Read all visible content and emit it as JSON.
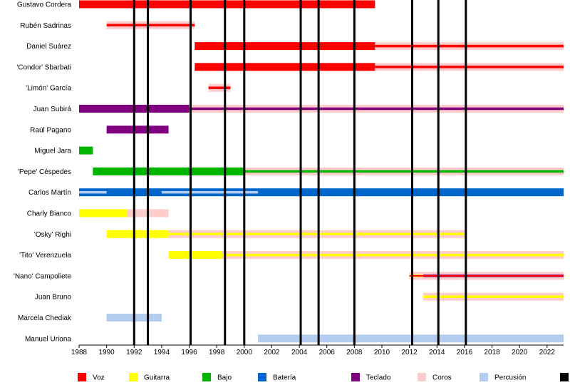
{
  "chart_data": {
    "type": "timeline",
    "xlim": [
      1988,
      2023.2
    ],
    "x_ticks": [
      "1988",
      "1990",
      "1992",
      "1994",
      "1996",
      "1998",
      "2000",
      "2002",
      "2004",
      "2006",
      "2008",
      "2010",
      "2012",
      "2014",
      "2016",
      "2018",
      "2020",
      "2022"
    ],
    "events": [
      1992,
      1993,
      1996.1,
      1998.6,
      2000,
      2004.1,
      2005.4,
      2008,
      2012.2,
      2014.1,
      2016.1
    ],
    "colors": {
      "voz": "#ff0000",
      "guitarra": "#ffff00",
      "bajo": "#00b400",
      "bateria": "#0066cc",
      "teclado": "#800080",
      "coros": "#ffcccc",
      "percusion": "#b3ccf0",
      "album": "#000000"
    },
    "legend": [
      {
        "key": "voz",
        "label": "Voz"
      },
      {
        "key": "guitarra",
        "label": "Guitarra"
      },
      {
        "key": "bajo",
        "label": "Bajo"
      },
      {
        "key": "bateria",
        "label": "Batería"
      },
      {
        "key": "teclado",
        "label": "Teclado"
      },
      {
        "key": "coros",
        "label": "Coros"
      },
      {
        "key": "percusion",
        "label": "Percusión"
      },
      {
        "key": "album",
        "label": ""
      }
    ],
    "members": [
      {
        "name": "Gustavo Cordera",
        "bars": [
          {
            "start": 1988,
            "end": 2009.5,
            "role": "voz",
            "style": "full"
          }
        ]
      },
      {
        "name": "Rubén Sadrinas",
        "bars": [
          {
            "start": 1990,
            "end": 1996.4,
            "role": "coros",
            "style": "full"
          },
          {
            "start": 1990,
            "end": 1996.4,
            "role": "voz",
            "style": "thin"
          }
        ]
      },
      {
        "name": "Daniel Suárez",
        "bars": [
          {
            "start": 1996.4,
            "end": 2009.5,
            "role": "voz",
            "style": "full"
          },
          {
            "start": 2009.5,
            "end": 2023.2,
            "role": "coros",
            "style": "full"
          },
          {
            "start": 2009.5,
            "end": 2023.2,
            "role": "voz",
            "style": "thin"
          }
        ]
      },
      {
        "name": "'Condor' Sbarbati",
        "bars": [
          {
            "start": 1996.4,
            "end": 2009.5,
            "role": "voz",
            "style": "full"
          },
          {
            "start": 2009.5,
            "end": 2023.2,
            "role": "coros",
            "style": "full"
          },
          {
            "start": 2009.5,
            "end": 2023.2,
            "role": "voz",
            "style": "thin"
          }
        ]
      },
      {
        "name": "'Limón' García",
        "bars": [
          {
            "start": 1997.4,
            "end": 1999.0,
            "role": "coros",
            "style": "full"
          },
          {
            "start": 1997.4,
            "end": 1999.0,
            "role": "voz",
            "style": "thin"
          }
        ]
      },
      {
        "name": "Juan Subirá",
        "bars": [
          {
            "start": 1988,
            "end": 1996.0,
            "role": "teclado",
            "style": "full"
          },
          {
            "start": 1996.0,
            "end": 2023.2,
            "role": "coros",
            "style": "full"
          },
          {
            "start": 1996.0,
            "end": 2023.2,
            "role": "teclado",
            "style": "thin"
          }
        ]
      },
      {
        "name": "Raúl Pagano",
        "bars": [
          {
            "start": 1990,
            "end": 1994.5,
            "role": "teclado",
            "style": "full"
          }
        ]
      },
      {
        "name": "Miguel Jara",
        "bars": [
          {
            "start": 1988,
            "end": 1989.0,
            "role": "bajo",
            "style": "full"
          }
        ]
      },
      {
        "name": "'Pepe' Céspedes",
        "bars": [
          {
            "start": 1989.0,
            "end": 2000.0,
            "role": "bajo",
            "style": "full"
          },
          {
            "start": 2000.0,
            "end": 2023.2,
            "role": "coros",
            "style": "full"
          },
          {
            "start": 2000.0,
            "end": 2023.2,
            "role": "bajo",
            "style": "thin"
          }
        ]
      },
      {
        "name": "Carlos Martín",
        "bars": [
          {
            "start": 1988,
            "end": 2023.2,
            "role": "bateria",
            "style": "full"
          },
          {
            "start": 1988,
            "end": 1990.0,
            "role": "percusion",
            "style": "thin"
          },
          {
            "start": 1994.0,
            "end": 2001.0,
            "role": "percusion",
            "style": "thin"
          }
        ]
      },
      {
        "name": "Charly Bianco",
        "bars": [
          {
            "start": 1988,
            "end": 1991.5,
            "role": "guitarra",
            "style": "full"
          },
          {
            "start": 1991.5,
            "end": 1994.5,
            "role": "coros",
            "style": "full"
          }
        ]
      },
      {
        "name": "'Osky' Righi",
        "bars": [
          {
            "start": 1990,
            "end": 1994.5,
            "role": "guitarra",
            "style": "full"
          },
          {
            "start": 1994.5,
            "end": 2016.1,
            "role": "coros",
            "style": "full"
          },
          {
            "start": 1994.5,
            "end": 2016.1,
            "role": "guitarra",
            "style": "thin"
          }
        ]
      },
      {
        "name": "'Tito' Verenzuela",
        "bars": [
          {
            "start": 1994.5,
            "end": 1998.4,
            "role": "guitarra",
            "style": "full"
          },
          {
            "start": 1998.4,
            "end": 2023.2,
            "role": "coros",
            "style": "full"
          },
          {
            "start": 1998.4,
            "end": 2023.2,
            "role": "guitarra",
            "style": "thin"
          }
        ]
      },
      {
        "name": "'Nano' Campoliete",
        "bars": [
          {
            "start": 2012.0,
            "end": 2023.2,
            "role": "coros",
            "style": "full"
          },
          {
            "start": 2012.0,
            "end": 2013.0,
            "role": "guitarra",
            "style": "thin"
          },
          {
            "start": 2013.0,
            "end": 2023.2,
            "role": "teclado",
            "style": "thin"
          },
          {
            "start": 2012.0,
            "end": 2023.2,
            "role": "voz",
            "style": "hair"
          }
        ]
      },
      {
        "name": "Juan Bruno",
        "bars": [
          {
            "start": 2013.0,
            "end": 2023.2,
            "role": "coros",
            "style": "full"
          },
          {
            "start": 2013.0,
            "end": 2023.2,
            "role": "guitarra",
            "style": "thin"
          }
        ]
      },
      {
        "name": "Marcela Chediak",
        "bars": [
          {
            "start": 1990,
            "end": 1994.0,
            "role": "percusion",
            "style": "full"
          }
        ]
      },
      {
        "name": "Manuel Uriona",
        "bars": [
          {
            "start": 2001.0,
            "end": 2023.2,
            "role": "percusion",
            "style": "full"
          }
        ]
      }
    ]
  }
}
